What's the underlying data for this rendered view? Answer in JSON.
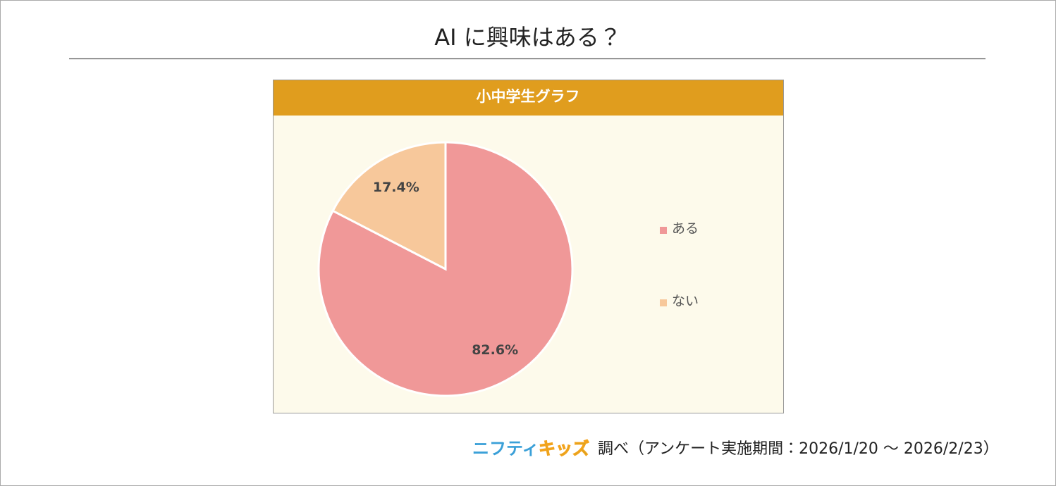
{
  "page": {
    "title": "AI に興味はある？",
    "brand": [
      "ニフティ",
      "キッズ"
    ],
    "source": "調べ（アンケート実施期間：2026/1/20 ～ 2026/2/23）"
  },
  "chart_data": {
    "type": "pie",
    "title": "小中学生グラフ",
    "categories": [
      "ある",
      "ない"
    ],
    "values": [
      82.6,
      17.4
    ],
    "value_labels": [
      "82.6%",
      "17.4%"
    ],
    "colors": [
      "#f09898",
      "#f7c89b"
    ],
    "legend": "right"
  }
}
